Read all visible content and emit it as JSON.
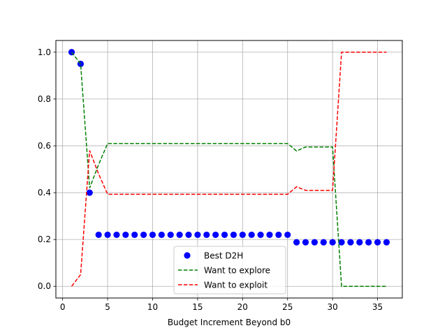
{
  "chart_data": {
    "type": "line",
    "title": "",
    "xlabel": "Budget Increment Beyond b0",
    "ylabel": "",
    "xlim": [
      -0.75,
      37.75
    ],
    "ylim": [
      -0.05,
      1.05
    ],
    "xticks": [
      0,
      5,
      10,
      15,
      20,
      25,
      30,
      35
    ],
    "yticks": [
      0.0,
      0.2,
      0.4,
      0.6,
      0.8,
      1.0
    ],
    "ytick_labels": [
      "0.0",
      "0.2",
      "0.4",
      "0.6",
      "0.8",
      "1.0"
    ],
    "grid": true,
    "legend_position": "lower-center",
    "series": [
      {
        "name": "Best D2H",
        "kind": "scatter",
        "color": "#0000ff",
        "x": [
          1,
          2,
          3,
          4,
          5,
          6,
          7,
          8,
          9,
          10,
          11,
          12,
          13,
          14,
          15,
          16,
          17,
          18,
          19,
          20,
          21,
          22,
          23,
          24,
          25,
          26,
          27,
          28,
          29,
          30,
          31,
          32,
          33,
          34,
          35,
          36
        ],
        "y": [
          1.0,
          0.95,
          0.4,
          0.22,
          0.22,
          0.22,
          0.22,
          0.22,
          0.22,
          0.22,
          0.22,
          0.22,
          0.22,
          0.22,
          0.22,
          0.22,
          0.22,
          0.22,
          0.22,
          0.22,
          0.22,
          0.22,
          0.22,
          0.22,
          0.22,
          0.188,
          0.188,
          0.188,
          0.188,
          0.188,
          0.188,
          0.188,
          0.188,
          0.188,
          0.188,
          0.188
        ]
      },
      {
        "name": "Want to explore",
        "kind": "dashed-line",
        "color": "#008000",
        "x": [
          1,
          2,
          3,
          4,
          5,
          6,
          7,
          8,
          9,
          10,
          11,
          12,
          13,
          14,
          15,
          16,
          17,
          18,
          19,
          20,
          21,
          22,
          23,
          24,
          25,
          26,
          27,
          28,
          29,
          30,
          31,
          32,
          33,
          34,
          35,
          36
        ],
        "y": [
          1.0,
          0.95,
          0.42,
          0.52,
          0.61,
          0.61,
          0.61,
          0.61,
          0.61,
          0.61,
          0.61,
          0.61,
          0.61,
          0.61,
          0.61,
          0.61,
          0.61,
          0.61,
          0.61,
          0.61,
          0.61,
          0.61,
          0.61,
          0.61,
          0.61,
          0.578,
          0.595,
          0.595,
          0.595,
          0.595,
          0.0,
          0.0,
          0.0,
          0.0,
          0.0,
          0.0
        ]
      },
      {
        "name": "Want to exploit",
        "kind": "dashed-line",
        "color": "#ff0000",
        "x": [
          1,
          2,
          3,
          4,
          5,
          6,
          7,
          8,
          9,
          10,
          11,
          12,
          13,
          14,
          15,
          16,
          17,
          18,
          19,
          20,
          21,
          22,
          23,
          24,
          25,
          26,
          27,
          28,
          29,
          30,
          31,
          32,
          33,
          34,
          35,
          36
        ],
        "y": [
          0.0,
          0.05,
          0.58,
          0.48,
          0.393,
          0.393,
          0.393,
          0.393,
          0.393,
          0.393,
          0.393,
          0.393,
          0.393,
          0.393,
          0.393,
          0.393,
          0.393,
          0.393,
          0.393,
          0.393,
          0.393,
          0.393,
          0.393,
          0.393,
          0.393,
          0.425,
          0.41,
          0.41,
          0.41,
          0.41,
          1.0,
          1.0,
          1.0,
          1.0,
          1.0,
          1.0
        ]
      }
    ]
  }
}
